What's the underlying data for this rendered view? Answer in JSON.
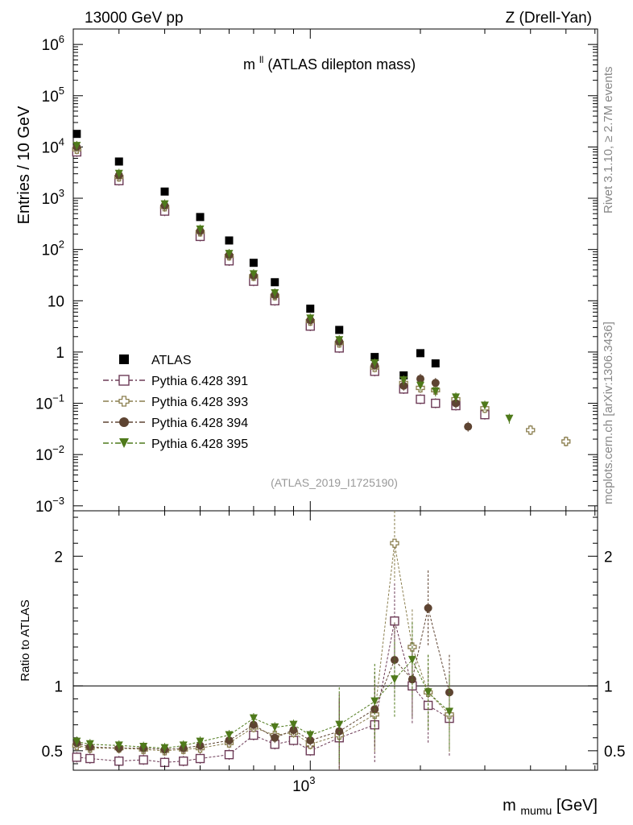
{
  "header": {
    "left": "13000 GeV pp",
    "right": "Z (Drell-Yan)"
  },
  "side": {
    "rivet": "Rivet 3.1.10, ≥ 2.7M events",
    "mcplots": "mcplots.cern.ch [arXiv:1306.3436]"
  },
  "chart_data": [
    {
      "type": "scatter",
      "title": "m",
      "title_sup": "ll",
      "title_rest": " (ATLAS dilepton mass)",
      "analysis_tag": "(ATLAS_2019_I1725190)",
      "ylabel": "Entries / 10 GeV",
      "yscale": "log",
      "ylim": [
        0.0008,
        2000000
      ],
      "xscale": "log",
      "xlim": [
        225,
        6100
      ],
      "y_tick_labels": [
        {
          "value": 1000000,
          "base": "10",
          "exp": "6"
        },
        {
          "value": 100000,
          "base": "10",
          "exp": "5"
        },
        {
          "value": 10000,
          "base": "10",
          "exp": "4"
        },
        {
          "value": 1000,
          "base": "10",
          "exp": "3"
        },
        {
          "value": 100,
          "base": "10",
          "exp": "2"
        },
        {
          "value": 10,
          "base": "10",
          "exp": ""
        },
        {
          "value": 1,
          "base": "1",
          "exp": ""
        },
        {
          "value": 0.1,
          "base": "10",
          "exp": "−1"
        },
        {
          "value": 0.01,
          "base": "10",
          "exp": "−2"
        },
        {
          "value": 0.001,
          "base": "10",
          "exp": "−3"
        }
      ],
      "legend_position": "lower-left",
      "series": [
        {
          "name": "ATLAS",
          "color": "#000000",
          "marker": "filled-square",
          "x": [
            230,
            300,
            400,
            500,
            600,
            700,
            800,
            1000,
            1200,
            1500,
            1800,
            2000,
            2200
          ],
          "y": [
            18000,
            5200,
            1350,
            430,
            150,
            55,
            23,
            7,
            2.7,
            0.8,
            0.35,
            0.95,
            0.6
          ]
        },
        {
          "name": "Pythia 6.428 391",
          "color": "#6d3b57",
          "marker": "open-square",
          "x": [
            230,
            300,
            400,
            500,
            600,
            700,
            800,
            1000,
            1200,
            1500,
            1800,
            2000,
            2200,
            2500,
            3000
          ],
          "y": [
            8000,
            2200,
            560,
            180,
            60,
            24,
            10,
            3.2,
            1.2,
            0.42,
            0.19,
            0.12,
            0.1,
            0.09,
            0.06
          ]
        },
        {
          "name": "Pythia 6.428 393",
          "color": "#8a7e4e",
          "marker": "open-cross",
          "x": [
            230,
            300,
            400,
            500,
            600,
            700,
            800,
            1000,
            1200,
            1500,
            1800,
            2000,
            2200,
            2500,
            3000,
            4000,
            5000
          ],
          "y": [
            9000,
            2600,
            680,
            220,
            75,
            30,
            12.5,
            4,
            1.5,
            0.5,
            0.25,
            0.2,
            0.18,
            0.12,
            0.08,
            0.03,
            0.018
          ]
        },
        {
          "name": "Pythia 6.428 394",
          "color": "#5e4432",
          "marker": "filled-circle",
          "x": [
            230,
            300,
            400,
            500,
            600,
            700,
            800,
            1000,
            1200,
            1500,
            1800,
            2000,
            2200,
            2500,
            2700
          ],
          "y": [
            10000,
            2800,
            720,
            230,
            78,
            31,
            13,
            4.2,
            1.6,
            0.55,
            0.22,
            0.3,
            0.25,
            0.1,
            0.035
          ]
        },
        {
          "name": "Pythia 6.428 395",
          "color": "#4f7a1b",
          "marker": "filled-triangle-down",
          "x": [
            230,
            300,
            400,
            500,
            600,
            700,
            800,
            1000,
            1200,
            1500,
            1800,
            2000,
            2200,
            2500,
            3000,
            3500
          ],
          "y": [
            10500,
            3000,
            760,
            245,
            82,
            33,
            14,
            4.5,
            1.7,
            0.6,
            0.28,
            0.22,
            0.17,
            0.13,
            0.09,
            0.05
          ]
        }
      ]
    },
    {
      "type": "scatter",
      "ylabel": "Ratio to ATLAS",
      "xlabel": "m",
      "xlabel_sub": "mumu",
      "xlabel_rest": " [GeV]",
      "xscale": "log",
      "xlim": [
        225,
        6100
      ],
      "ylim": [
        0.35,
        2.35
      ],
      "x_tick_labels": [
        {
          "value": 1000,
          "base": "10",
          "exp": "3"
        }
      ],
      "y_tick_labels": [
        {
          "value": 2,
          "label": "2"
        },
        {
          "value": 1,
          "label": "1"
        },
        {
          "value": 0.5,
          "label": "0.5"
        }
      ],
      "reference_line": 1,
      "series": [
        {
          "name": "Pythia 6.428 391",
          "color": "#6d3b57",
          "marker": "open-square",
          "x": [
            230,
            250,
            300,
            350,
            400,
            450,
            500,
            600,
            700,
            800,
            900,
            1000,
            1200,
            1500,
            1700,
            1900,
            2100,
            2400
          ],
          "y": [
            0.45,
            0.44,
            0.42,
            0.43,
            0.41,
            0.42,
            0.44,
            0.47,
            0.62,
            0.55,
            0.58,
            0.5,
            0.6,
            0.7,
            1.5,
            1.0,
            0.85,
            0.75
          ]
        },
        {
          "name": "Pythia 6.428 393",
          "color": "#8a7e4e",
          "marker": "open-cross",
          "x": [
            230,
            250,
            300,
            350,
            400,
            450,
            500,
            600,
            700,
            800,
            900,
            1000,
            1200,
            1500,
            1700,
            1900,
            2100,
            2400
          ],
          "y": [
            0.54,
            0.52,
            0.52,
            0.51,
            0.5,
            0.51,
            0.52,
            0.56,
            0.68,
            0.62,
            0.64,
            0.55,
            0.62,
            0.78,
            2.1,
            1.3,
            0.95,
            0.78
          ]
        },
        {
          "name": "Pythia 6.428 394",
          "color": "#5e4432",
          "marker": "filled-circle",
          "x": [
            230,
            250,
            300,
            350,
            400,
            450,
            500,
            600,
            700,
            800,
            900,
            1000,
            1200,
            1500,
            1700,
            1900,
            2100,
            2400
          ],
          "y": [
            0.56,
            0.53,
            0.52,
            0.52,
            0.51,
            0.52,
            0.54,
            0.58,
            0.7,
            0.6,
            0.66,
            0.58,
            0.65,
            0.82,
            1.2,
            1.05,
            1.6,
            0.95
          ]
        },
        {
          "name": "Pythia 6.428 395",
          "color": "#4f7a1b",
          "marker": "filled-triangle-down",
          "x": [
            230,
            250,
            300,
            350,
            400,
            450,
            500,
            600,
            700,
            800,
            900,
            1000,
            1200,
            1500,
            1700,
            1900,
            2100,
            2400
          ],
          "y": [
            0.57,
            0.55,
            0.54,
            0.53,
            0.52,
            0.54,
            0.57,
            0.62,
            0.75,
            0.68,
            0.7,
            0.62,
            0.7,
            0.88,
            1.05,
            1.2,
            0.95,
            0.8
          ]
        }
      ]
    }
  ]
}
